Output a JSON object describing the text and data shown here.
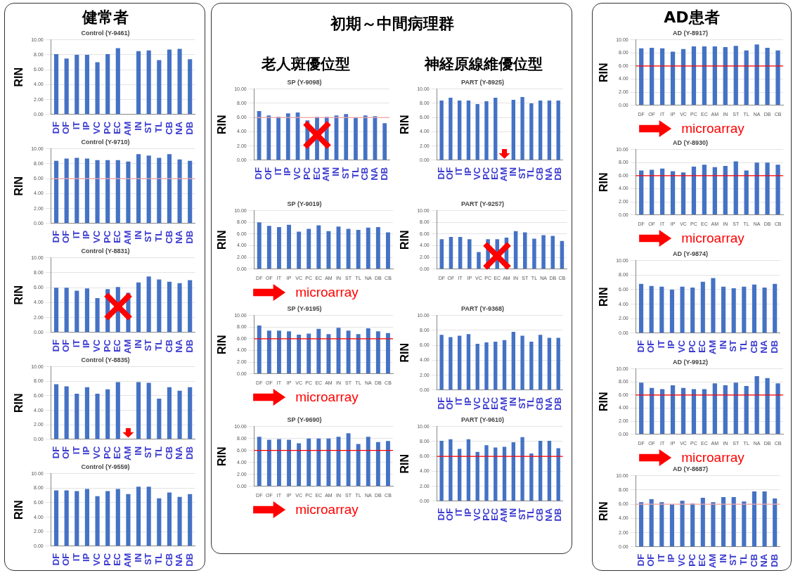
{
  "chart_data": [
    {
      "type": "other",
      "title": "健常者"
    },
    {
      "type": "bar",
      "title": "Control (Y-9461)",
      "ylabel": "RIN",
      "categories": [
        "DF",
        "OF",
        "IT",
        "IP",
        "VC",
        "PC",
        "EC",
        "AM",
        "IN",
        "ST",
        "TL",
        "CB",
        "NA",
        "DB"
      ],
      "values": [
        8.1,
        7.5,
        8.0,
        8.0,
        7.0,
        8.1,
        8.9,
        null,
        8.5,
        8.6,
        7.3,
        8.7,
        8.8,
        7.4
      ],
      "color": "#4472c4",
      "ylim": [
        0,
        10
      ],
      "yticks": [
        {
          "value": 0,
          "label": "0.00"
        },
        {
          "value": 2,
          "label": "2.00"
        },
        {
          "value": 4,
          "label": "4.00"
        },
        {
          "value": 6,
          "label": "6.00"
        },
        {
          "value": 8,
          "label": "8.00"
        },
        {
          "value": 10,
          "label": "10.00"
        }
      ],
      "grid": "y"
    },
    {
      "type": "bar",
      "title": "Control (Y-9710)",
      "ylabel": "RIN",
      "categories": [
        "DF",
        "OF",
        "IT",
        "IP",
        "VC",
        "PC",
        "EC",
        "AM",
        "IN",
        "ST",
        "TL",
        "CB",
        "NA",
        "DB"
      ],
      "values": [
        8.4,
        8.7,
        8.8,
        8.7,
        8.5,
        8.5,
        8.5,
        8.3,
        9.3,
        9.1,
        8.8,
        9.3,
        8.6,
        8.4
      ],
      "color": "#4472c4",
      "ylim": [
        0,
        10
      ],
      "yticks": [
        {
          "value": 0,
          "label": "0.00"
        },
        {
          "value": 2,
          "label": "2.00"
        },
        {
          "value": 4,
          "label": "4.00"
        },
        {
          "value": 6,
          "label": "6.00"
        },
        {
          "value": 8,
          "label": "8.00"
        },
        {
          "value": 10,
          "label": "10.00"
        }
      ],
      "grid": "y",
      "ref_lines": [
        {
          "axis": "y",
          "value": 6,
          "color": "#f4a6a6"
        }
      ]
    },
    {
      "type": "bar",
      "title": "Control (Y-8831)",
      "ylabel": "RIN",
      "categories": [
        "DF",
        "OF",
        "IT",
        "IP",
        "VC",
        "PC",
        "EC",
        "AM",
        "IN",
        "ST",
        "TL",
        "CB",
        "NA",
        "DB"
      ],
      "values": [
        6.0,
        6.0,
        5.6,
        5.9,
        4.6,
        5.8,
        6.1,
        5.3,
        6.7,
        7.5,
        7.1,
        6.8,
        6.6,
        7.0
      ],
      "color": "#4472c4",
      "ylim": [
        0,
        10
      ],
      "yticks": [
        {
          "value": 0,
          "label": "0.00"
        },
        {
          "value": 2,
          "label": "2.00"
        },
        {
          "value": 4,
          "label": "4.00"
        },
        {
          "value": 6,
          "label": "6.00"
        },
        {
          "value": 8,
          "label": "8.00"
        },
        {
          "value": 10,
          "label": "10.00"
        }
      ],
      "grid": "y"
    },
    {
      "type": "bar",
      "title": "Control (Y-8835)",
      "ylabel": "RIN",
      "categories": [
        "DF",
        "OF",
        "IT",
        "IP",
        "VC",
        "PC",
        "EC",
        "AM",
        "IN",
        "ST",
        "TL",
        "CB",
        "NA",
        "DB"
      ],
      "values": [
        7.6,
        7.3,
        6.3,
        7.2,
        6.3,
        6.9,
        7.9,
        null,
        7.9,
        7.8,
        5.6,
        7.2,
        6.7,
        7.2
      ],
      "color": "#4472c4",
      "ylim": [
        0,
        10
      ],
      "yticks": [
        {
          "value": 0,
          "label": "0.00"
        },
        {
          "value": 2,
          "label": "2.00"
        },
        {
          "value": 4,
          "label": "4.00"
        },
        {
          "value": 6,
          "label": "6.00"
        },
        {
          "value": 8,
          "label": "8.00"
        },
        {
          "value": 10,
          "label": "10.00"
        }
      ],
      "grid": "y"
    },
    {
      "type": "bar",
      "title": "Control (Y-9559)",
      "ylabel": "RIN",
      "categories": [
        "DF",
        "OF",
        "IT",
        "IP",
        "VC",
        "PC",
        "EC",
        "AM",
        "IN",
        "ST",
        "TL",
        "CB",
        "NA",
        "DB"
      ],
      "values": [
        7.7,
        7.7,
        7.6,
        7.9,
        6.9,
        7.6,
        7.9,
        7.2,
        8.2,
        8.2,
        6.6,
        7.4,
        6.8,
        7.2
      ],
      "color": "#4472c4",
      "ylim": [
        0,
        10
      ],
      "yticks": [
        {
          "value": 0,
          "label": "0.00"
        },
        {
          "value": 2,
          "label": "2.00"
        },
        {
          "value": 4,
          "label": "4.00"
        },
        {
          "value": 6,
          "label": "6.00"
        },
        {
          "value": 8,
          "label": "8.00"
        },
        {
          "value": 10,
          "label": "10.00"
        }
      ],
      "grid": "y"
    },
    {
      "type": "other",
      "title": "初期～中間病理群"
    },
    {
      "type": "other",
      "title": "老人斑優位型"
    },
    {
      "type": "bar",
      "title": "SP (Y-9098)",
      "ylabel": "RIN",
      "categories": [
        "DF",
        "OF",
        "IT",
        "IP",
        "VC",
        "PC",
        "EC",
        "AM",
        "IN",
        "ST",
        "TL",
        "CB",
        "NA",
        "DB"
      ],
      "values": [
        6.9,
        6.3,
        6.1,
        6.6,
        6.7,
        5.6,
        6.1,
        6.1,
        6.3,
        6.5,
        6.0,
        6.3,
        6.2,
        5.2
      ],
      "color": "#4472c4",
      "ylim": [
        0,
        10
      ],
      "yticks": [
        {
          "value": 0,
          "label": "0.00"
        },
        {
          "value": 2,
          "label": "2.00"
        },
        {
          "value": 4,
          "label": "4.00"
        },
        {
          "value": 6,
          "label": "6.00"
        },
        {
          "value": 8,
          "label": "8.00"
        },
        {
          "value": 10,
          "label": "10.00"
        }
      ],
      "grid": "y",
      "ref_lines": [
        {
          "axis": "y",
          "value": 6,
          "color": "#f4a6a6"
        }
      ]
    },
    {
      "type": "bar",
      "title": "SP (Y-9019)",
      "ylabel": "RIN",
      "categories": [
        "DF",
        "OF",
        "IT",
        "IP",
        "VC",
        "PC",
        "EC",
        "AM",
        "IN",
        "ST",
        "TL",
        "NA",
        "DB",
        "CB"
      ],
      "values": [
        8.0,
        7.4,
        7.2,
        7.6,
        6.4,
        6.9,
        7.5,
        6.5,
        7.3,
        6.9,
        6.7,
        7.1,
        7.2,
        6.3
      ],
      "color": "#4472c4",
      "ylim": [
        0,
        10
      ],
      "yticks": [
        {
          "value": 0,
          "label": "0.00"
        },
        {
          "value": 2,
          "label": "2.00"
        },
        {
          "value": 4,
          "label": "4.00"
        },
        {
          "value": 6,
          "label": "6.00"
        },
        {
          "value": 8,
          "label": "8.00"
        },
        {
          "value": 10,
          "label": "10.00"
        }
      ],
      "grid": "y",
      "annotations": [
        "microarray"
      ]
    },
    {
      "type": "bar",
      "title": "SP (Y-9195)",
      "ylabel": "RIN",
      "categories": [
        "DF",
        "OF",
        "IT",
        "IP",
        "VC",
        "PC",
        "EC",
        "AM",
        "IN",
        "ST",
        "TL",
        "NA",
        "DB",
        "CB"
      ],
      "values": [
        8.3,
        7.4,
        7.4,
        7.3,
        6.7,
        6.9,
        7.7,
        6.8,
        7.9,
        7.4,
        6.8,
        7.8,
        7.3,
        7.0
      ],
      "color": "#4472c4",
      "ylim": [
        0,
        10
      ],
      "yticks": [
        {
          "value": 0,
          "label": "0.00"
        },
        {
          "value": 2,
          "label": "2.00"
        },
        {
          "value": 4,
          "label": "4.00"
        },
        {
          "value": 6,
          "label": "6.00"
        },
        {
          "value": 8,
          "label": "8.00"
        },
        {
          "value": 10,
          "label": "10.00"
        }
      ],
      "grid": "y",
      "ref_lines": [
        {
          "axis": "y",
          "value": 6,
          "color": "#ff0000"
        }
      ],
      "annotations": [
        "microarray"
      ]
    },
    {
      "type": "bar",
      "title": "SP (Y-9690)",
      "ylabel": "RIN",
      "categories": [
        "DF",
        "OF",
        "IT",
        "IP",
        "VC",
        "PC",
        "EC",
        "AM",
        "IN",
        "ST",
        "TL",
        "NA",
        "DB",
        "CB"
      ],
      "values": [
        8.3,
        7.8,
        7.9,
        7.8,
        7.2,
        8.0,
        8.0,
        8.0,
        8.3,
        8.9,
        7.1,
        8.3,
        7.4,
        7.6
      ],
      "color": "#4472c4",
      "ylim": [
        0,
        10
      ],
      "yticks": [
        {
          "value": 0,
          "label": "0.00"
        },
        {
          "value": 2,
          "label": "2.00"
        },
        {
          "value": 4,
          "label": "4.00"
        },
        {
          "value": 6,
          "label": "6.00"
        },
        {
          "value": 8,
          "label": "8.00"
        },
        {
          "value": 10,
          "label": "10.00"
        }
      ],
      "grid": "y",
      "ref_lines": [
        {
          "axis": "y",
          "value": 6,
          "color": "#ff0000"
        }
      ],
      "annotations": [
        "microarray"
      ]
    },
    {
      "type": "other",
      "title": "神経原線維優位型"
    },
    {
      "type": "bar",
      "title": "PART (Y-8925)",
      "ylabel": "RIN",
      "categories": [
        "DF",
        "OF",
        "IT",
        "IP",
        "VC",
        "PC",
        "EC",
        "AM",
        "IN",
        "ST",
        "TL",
        "CB",
        "NA",
        "DB"
      ],
      "values": [
        8.4,
        8.8,
        8.4,
        8.4,
        7.9,
        8.3,
        8.8,
        null,
        8.5,
        8.9,
        8.0,
        8.4,
        8.4,
        8.4
      ],
      "color": "#4472c4",
      "ylim": [
        0,
        10
      ],
      "yticks": [
        {
          "value": 0,
          "label": "0.00"
        },
        {
          "value": 2,
          "label": "2.00"
        },
        {
          "value": 4,
          "label": "4.00"
        },
        {
          "value": 6,
          "label": "6.00"
        },
        {
          "value": 8,
          "label": "8.00"
        },
        {
          "value": 10,
          "label": "10.00"
        }
      ],
      "grid": "y"
    },
    {
      "type": "bar",
      "title": "PART (Y-9257)",
      "ylabel": "RIN",
      "categories": [
        "DF",
        "OF",
        "IT",
        "IP",
        "VC",
        "PC",
        "EC",
        "AM",
        "IN",
        "ST",
        "TL",
        "NA",
        "DB",
        "CB"
      ],
      "values": [
        5.1,
        5.5,
        5.5,
        5.1,
        2.9,
        5.1,
        5.1,
        5.4,
        6.5,
        6.3,
        5.2,
        5.8,
        5.7,
        4.8
      ],
      "color": "#4472c4",
      "ylim": [
        0,
        10
      ],
      "yticks": [
        {
          "value": 0,
          "label": "0.00"
        },
        {
          "value": 2,
          "label": "2.00"
        },
        {
          "value": 4,
          "label": "4.00"
        },
        {
          "value": 6,
          "label": "6.00"
        },
        {
          "value": 8,
          "label": "8.00"
        },
        {
          "value": 10,
          "label": "10.00"
        }
      ],
      "grid": "y"
    },
    {
      "type": "bar",
      "title": "PART (Y-9368)",
      "ylabel": "RIN",
      "categories": [
        "DF",
        "OF",
        "IT",
        "IP",
        "VC",
        "PC",
        "EC",
        "AM",
        "IN",
        "ST",
        "TL",
        "CB",
        "NA",
        "DB"
      ],
      "values": [
        7.4,
        7.1,
        7.3,
        7.5,
        6.2,
        6.4,
        6.5,
        6.7,
        7.8,
        7.3,
        6.5,
        7.4,
        7.0,
        7.0
      ],
      "color": "#4472c4",
      "ylim": [
        0,
        10
      ],
      "yticks": [
        {
          "value": 0,
          "label": "0.00"
        },
        {
          "value": 2,
          "label": "2.00"
        },
        {
          "value": 4,
          "label": "4.00"
        },
        {
          "value": 6,
          "label": "6.00"
        },
        {
          "value": 8,
          "label": "8.00"
        },
        {
          "value": 10,
          "label": "10.00"
        }
      ],
      "grid": "y"
    },
    {
      "type": "bar",
      "title": "PART (Y-9610)",
      "ylabel": "RIN",
      "categories": [
        "DF",
        "OF",
        "IT",
        "IP",
        "VC",
        "PC",
        "EC",
        "AM",
        "IN",
        "ST",
        "TL",
        "CB",
        "NA",
        "DB"
      ],
      "values": [
        8.1,
        8.3,
        7.0,
        8.3,
        6.6,
        7.5,
        7.2,
        7.3,
        7.9,
        8.6,
        6.4,
        8.1,
        8.1,
        7.1
      ],
      "color": "#4472c4",
      "ylim": [
        0,
        10
      ],
      "yticks": [
        {
          "value": 0,
          "label": "0.00"
        },
        {
          "value": 2,
          "label": "2.00"
        },
        {
          "value": 4,
          "label": "4.00"
        },
        {
          "value": 6,
          "label": "6.00"
        },
        {
          "value": 8,
          "label": "8.00"
        },
        {
          "value": 10,
          "label": "10.00"
        }
      ],
      "grid": "y",
      "ref_lines": [
        {
          "axis": "y",
          "value": 6,
          "color": "#ff0000"
        }
      ]
    },
    {
      "type": "other",
      "title": "AD患者"
    },
    {
      "type": "bar",
      "title": "AD (Y-8917)",
      "ylabel": "RIN",
      "categories": [
        "DF",
        "OF",
        "IT",
        "IP",
        "VC",
        "PC",
        "EC",
        "AM",
        "IN",
        "ST",
        "TL",
        "NA",
        "DB",
        "CB"
      ],
      "values": [
        8.7,
        8.8,
        8.7,
        8.2,
        8.6,
        9.0,
        9.0,
        9.0,
        8.9,
        9.1,
        8.4,
        9.3,
        8.8,
        8.4
      ],
      "color": "#4472c4",
      "ylim": [
        0,
        10
      ],
      "yticks": [
        {
          "value": 0,
          "label": "0.00"
        },
        {
          "value": 2,
          "label": "2.00"
        },
        {
          "value": 4,
          "label": "4.00"
        },
        {
          "value": 6,
          "label": "6.00"
        },
        {
          "value": 8,
          "label": "8.00"
        },
        {
          "value": 10,
          "label": "10.00"
        }
      ],
      "grid": "y",
      "ref_lines": [
        {
          "axis": "y",
          "value": 6,
          "color": "#ff0000"
        }
      ],
      "annotations": [
        "microarray"
      ]
    },
    {
      "type": "bar",
      "title": "AD (Y-8930)",
      "ylabel": "RIN",
      "categories": [
        "DF",
        "OF",
        "IT",
        "IP",
        "VC",
        "PC",
        "EC",
        "AM",
        "IN",
        "ST",
        "TL",
        "NA",
        "DB",
        "CB"
      ],
      "values": [
        6.8,
        6.9,
        7.1,
        6.7,
        6.5,
        7.4,
        7.7,
        7.3,
        7.5,
        8.2,
        6.8,
        8.0,
        8.0,
        7.7
      ],
      "color": "#4472c4",
      "ylim": [
        0,
        10
      ],
      "yticks": [
        {
          "value": 0,
          "label": "0.00"
        },
        {
          "value": 2,
          "label": "2.00"
        },
        {
          "value": 4,
          "label": "4.00"
        },
        {
          "value": 6,
          "label": "6.00"
        },
        {
          "value": 8,
          "label": "8.00"
        },
        {
          "value": 10,
          "label": "10.00"
        }
      ],
      "grid": "y",
      "ref_lines": [
        {
          "axis": "y",
          "value": 6,
          "color": "#ff0000"
        }
      ],
      "annotations": [
        "microarray"
      ]
    },
    {
      "type": "bar",
      "title": "AD (Y-9874)",
      "ylabel": "RIN",
      "categories": [
        "DF",
        "OF",
        "IT",
        "IP",
        "VC",
        "PC",
        "EC",
        "AM",
        "IN",
        "ST",
        "TL",
        "CB",
        "NA",
        "DB"
      ],
      "values": [
        6.8,
        6.5,
        6.4,
        6.0,
        6.4,
        6.3,
        7.1,
        7.6,
        6.4,
        6.2,
        6.4,
        6.7,
        6.3,
        6.8
      ],
      "color": "#4472c4",
      "ylim": [
        0,
        10
      ],
      "yticks": [
        {
          "value": 0,
          "label": "0.00"
        },
        {
          "value": 2,
          "label": "2.00"
        },
        {
          "value": 4,
          "label": "4.00"
        },
        {
          "value": 6,
          "label": "6.00"
        },
        {
          "value": 8,
          "label": "8.00"
        },
        {
          "value": 10,
          "label": "10.00"
        }
      ],
      "grid": "y"
    },
    {
      "type": "bar",
      "title": "AD (Y-9912)",
      "ylabel": "RIN",
      "categories": [
        "DF",
        "OF",
        "IT",
        "IP",
        "VC",
        "PC",
        "EC",
        "AM",
        "IN",
        "ST",
        "TL",
        "NA",
        "DB",
        "CB"
      ],
      "values": [
        7.9,
        7.1,
        6.9,
        7.5,
        7.1,
        6.9,
        6.9,
        7.8,
        7.5,
        7.9,
        7.4,
        8.9,
        8.6,
        7.8
      ],
      "color": "#4472c4",
      "ylim": [
        0,
        10
      ],
      "yticks": [
        {
          "value": 0,
          "label": "0.00"
        },
        {
          "value": 2,
          "label": "2.00"
        },
        {
          "value": 4,
          "label": "4.00"
        },
        {
          "value": 6,
          "label": "6.00"
        },
        {
          "value": 8,
          "label": "8.00"
        },
        {
          "value": 10,
          "label": "10.00"
        }
      ],
      "grid": "y",
      "ref_lines": [
        {
          "axis": "y",
          "value": 6,
          "color": "#ff0000"
        }
      ],
      "annotations": [
        "microarray"
      ]
    },
    {
      "type": "bar",
      "title": "AD (Y-8687)",
      "ylabel": "RIN",
      "categories": [
        "DF",
        "OF",
        "IT",
        "IP",
        "VC",
        "PC",
        "EC",
        "AM",
        "IN",
        "ST",
        "TL",
        "CB",
        "NA",
        "DB"
      ],
      "values": [
        6.3,
        6.7,
        6.3,
        6.0,
        6.5,
        6.1,
        6.9,
        6.3,
        7.0,
        7.0,
        6.4,
        7.8,
        7.8,
        6.8
      ],
      "color": "#4472c4",
      "ylim": [
        0,
        10
      ],
      "yticks": [
        {
          "value": 0,
          "label": "0.00"
        },
        {
          "value": 2,
          "label": "2.00"
        },
        {
          "value": 4,
          "label": "4.00"
        },
        {
          "value": 6,
          "label": "6.00"
        },
        {
          "value": 8,
          "label": "8.00"
        },
        {
          "value": 10,
          "label": "10.00"
        }
      ],
      "grid": "y",
      "ref_lines": [
        {
          "axis": "y",
          "value": 6,
          "color": "#f4a6a6"
        }
      ]
    }
  ]
}
